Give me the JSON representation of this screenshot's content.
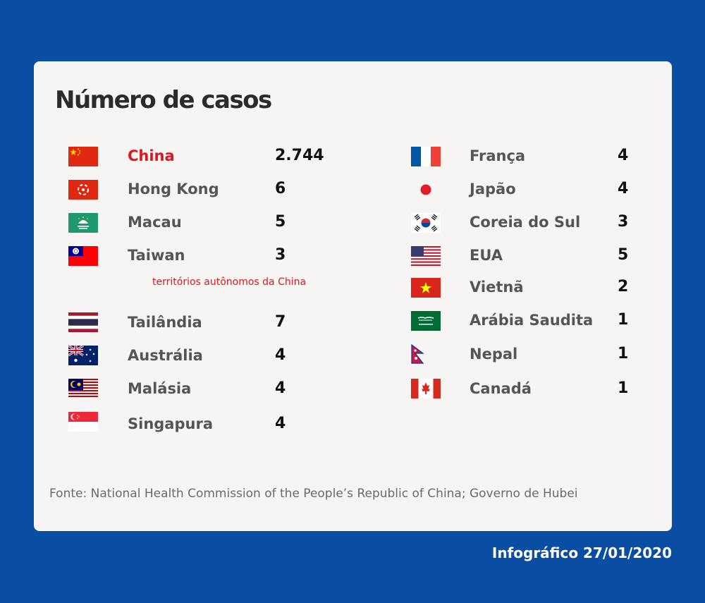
{
  "title": "Número de casos",
  "note": "territórios autônomos da China",
  "source": {
    "label": "Fonte:",
    "text": "National Health Commission of the People’s Republic of China; Governo de Hubei"
  },
  "footer": "Infográfico 27/01/2020",
  "colors": {
    "background": "#0a4ea3",
    "card": "#f6f5f4",
    "highlight": "#e1171e"
  },
  "left_column": [
    {
      "flag": "china-flag-icon",
      "name": "China",
      "value": "2.744"
    },
    {
      "flag": "hong-kong-flag-icon",
      "name": "Hong Kong",
      "value": "6"
    },
    {
      "flag": "macau-flag-icon",
      "name": "Macau",
      "value": "5"
    },
    {
      "flag": "taiwan-flag-icon",
      "name": "Taiwan",
      "value": "3"
    },
    {
      "flag": "thailand-flag-icon",
      "name": "Tailândia",
      "value": "7"
    },
    {
      "flag": "australia-flag-icon",
      "name": "Austrália",
      "value": "4"
    },
    {
      "flag": "malaysia-flag-icon",
      "name": "Malásia",
      "value": "4"
    },
    {
      "flag": "singapore-flag-icon",
      "name": "Singapura",
      "value": "4"
    }
  ],
  "right_column": [
    {
      "flag": "france-flag-icon",
      "name": "França",
      "value": "4"
    },
    {
      "flag": "japan-flag-icon",
      "name": "Japão",
      "value": "4"
    },
    {
      "flag": "south-korea-flag-icon",
      "name": "Coreia do Sul",
      "value": "3"
    },
    {
      "flag": "usa-flag-icon",
      "name": "EUA",
      "value": "5"
    },
    {
      "flag": "vietnam-flag-icon",
      "name": "Vietnã",
      "value": "2"
    },
    {
      "flag": "saudi-arabia-flag-icon",
      "name": "Arábia Saudita",
      "value": "1"
    },
    {
      "flag": "nepal-flag-icon",
      "name": "Nepal",
      "value": "1"
    },
    {
      "flag": "canada-flag-icon",
      "name": "Canadá",
      "value": "1"
    }
  ]
}
